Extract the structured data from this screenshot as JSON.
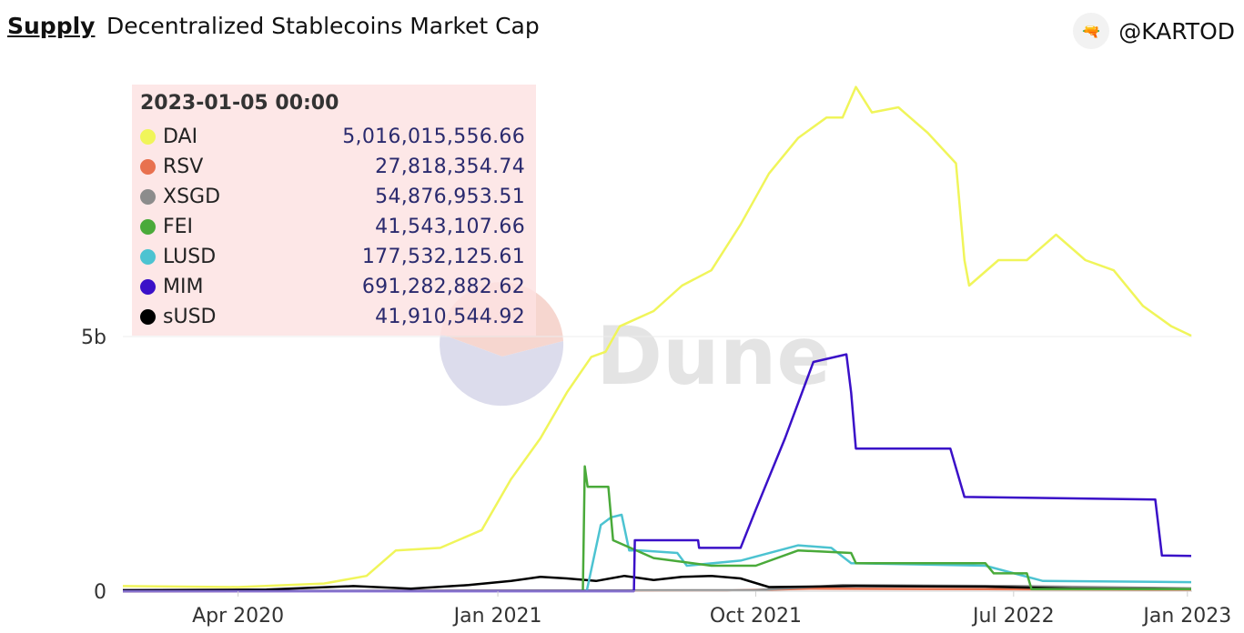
{
  "header": {
    "breadcrumb": "Supply",
    "title": "Decentralized Stablecoins Market Cap",
    "author": "@KARTOD"
  },
  "watermark": "Dune",
  "tooltip": {
    "date": "2023-01-05 00:00",
    "rows": [
      {
        "name": "DAI",
        "value": "5,016,015,556.66",
        "color": "#f0f55a"
      },
      {
        "name": "RSV",
        "value": "27,818,354.74",
        "color": "#e8714f"
      },
      {
        "name": "XSGD",
        "value": "54,876,953.51",
        "color": "#8c8c8c"
      },
      {
        "name": "FEI",
        "value": "41,543,107.66",
        "color": "#4aaa3a"
      },
      {
        "name": "LUSD",
        "value": "177,532,125.61",
        "color": "#4cc3d1"
      },
      {
        "name": "MIM",
        "value": "691,282,882.62",
        "color": "#3a10c8"
      },
      {
        "name": "sUSD",
        "value": "41,910,544.92",
        "color": "#000000"
      }
    ]
  },
  "chart_data": {
    "type": "line",
    "title": "Decentralized Stablecoins Market Cap",
    "x_unit": "date",
    "xlim": [
      "2019-12-01",
      "2023-01-06"
    ],
    "ylim": [
      0,
      10000000000
    ],
    "x_ticks": [
      {
        "date": "2020-04-01",
        "label": "Apr 2020"
      },
      {
        "date": "2021-01-01",
        "label": "Jan 2021"
      },
      {
        "date": "2021-10-01",
        "label": "Oct 2021"
      },
      {
        "date": "2022-07-01",
        "label": "Jul 2022"
      },
      {
        "date": "2023-01-01",
        "label": "Jan 2023"
      }
    ],
    "y_ticks": [
      {
        "value": 0,
        "label": "0"
      },
      {
        "value": 5000000000,
        "label": "5b"
      }
    ],
    "grid": "horizontal",
    "series": [
      {
        "name": "DAI",
        "color": "#f0f55a",
        "points": [
          [
            "2019-12-01",
            100000000.0
          ],
          [
            "2020-04-01",
            80000000.0
          ],
          [
            "2020-07-01",
            150000000.0
          ],
          [
            "2020-08-15",
            300000000.0
          ],
          [
            "2020-09-15",
            800000000.0
          ],
          [
            "2020-11-01",
            850000000.0
          ],
          [
            "2020-12-15",
            1200000000.0
          ],
          [
            "2021-01-15",
            2200000000.0
          ],
          [
            "2021-02-15",
            3000000000.0
          ],
          [
            "2021-03-15",
            3900000000.0
          ],
          [
            "2021-04-10",
            4600000000.0
          ],
          [
            "2021-04-25",
            4700000000.0
          ],
          [
            "2021-05-10",
            5200000000.0
          ],
          [
            "2021-06-15",
            5500000000.0
          ],
          [
            "2021-07-15",
            6000000000.0
          ],
          [
            "2021-08-15",
            6300000000.0
          ],
          [
            "2021-09-15",
            7200000000.0
          ],
          [
            "2021-10-15",
            8200000000.0
          ],
          [
            "2021-11-15",
            8900000000.0
          ],
          [
            "2021-12-15",
            9300000000.0
          ],
          [
            "2022-01-01",
            9300000000.0
          ],
          [
            "2022-01-15",
            9900000000.0
          ],
          [
            "2022-02-01",
            9400000000.0
          ],
          [
            "2022-03-01",
            9500000000.0
          ],
          [
            "2022-04-01",
            9000000000.0
          ],
          [
            "2022-05-01",
            8400000000.0
          ],
          [
            "2022-05-10",
            6500000000.0
          ],
          [
            "2022-05-15",
            6000000000.0
          ],
          [
            "2022-06-15",
            6500000000.0
          ],
          [
            "2022-07-15",
            6500000000.0
          ],
          [
            "2022-08-15",
            7000000000.0
          ],
          [
            "2022-09-15",
            6500000000.0
          ],
          [
            "2022-10-15",
            6300000000.0
          ],
          [
            "2022-11-15",
            5600000000.0
          ],
          [
            "2022-12-15",
            5200000000.0
          ],
          [
            "2023-01-05",
            5016000000.0
          ]
        ]
      },
      {
        "name": "RSV",
        "color": "#e8714f",
        "points": [
          [
            "2019-12-01",
            0
          ],
          [
            "2021-09-01",
            10000000.0
          ],
          [
            "2021-12-01",
            50000000.0
          ],
          [
            "2022-06-01",
            40000000.0
          ],
          [
            "2023-01-05",
            28000000.0
          ]
        ]
      },
      {
        "name": "XSGD",
        "color": "#8c8c8c",
        "points": [
          [
            "2019-12-01",
            0
          ],
          [
            "2021-10-01",
            20000000.0
          ],
          [
            "2022-01-01",
            120000000.0
          ],
          [
            "2022-07-01",
            100000000.0
          ],
          [
            "2023-01-05",
            55000000.0
          ]
        ]
      },
      {
        "name": "FEI",
        "color": "#4aaa3a",
        "points": [
          [
            "2021-04-01",
            0
          ],
          [
            "2021-04-03",
            2450000000.0
          ],
          [
            "2021-04-06",
            2050000000.0
          ],
          [
            "2021-04-28",
            2050000000.0
          ],
          [
            "2021-05-03",
            1000000000.0
          ],
          [
            "2021-06-15",
            650000000.0
          ],
          [
            "2021-08-15",
            500000000.0
          ],
          [
            "2021-10-01",
            500000000.0
          ],
          [
            "2021-11-15",
            800000000.0
          ],
          [
            "2022-01-10",
            750000000.0
          ],
          [
            "2022-01-15",
            550000000.0
          ],
          [
            "2022-06-01",
            550000000.0
          ],
          [
            "2022-06-10",
            350000000.0
          ],
          [
            "2022-07-15",
            350000000.0
          ],
          [
            "2022-07-20",
            40000000.0
          ],
          [
            "2023-01-05",
            41500000.0
          ]
        ]
      },
      {
        "name": "LUSD",
        "color": "#4cc3d1",
        "points": [
          [
            "2021-04-05",
            0
          ],
          [
            "2021-04-20",
            1300000000.0
          ],
          [
            "2021-05-01",
            1450000000.0
          ],
          [
            "2021-05-12",
            1500000000.0
          ],
          [
            "2021-05-20",
            800000000.0
          ],
          [
            "2021-06-01",
            800000000.0
          ],
          [
            "2021-07-10",
            750000000.0
          ],
          [
            "2021-07-20",
            500000000.0
          ],
          [
            "2021-09-15",
            600000000.0
          ],
          [
            "2021-11-15",
            900000000.0
          ],
          [
            "2021-12-20",
            850000000.0
          ],
          [
            "2022-01-10",
            550000000.0
          ],
          [
            "2022-06-01",
            500000000.0
          ],
          [
            "2022-08-01",
            200000000.0
          ],
          [
            "2023-01-05",
            177500000.0
          ]
        ]
      },
      {
        "name": "MIM",
        "color": "#3a10c8",
        "points": [
          [
            "2019-12-01",
            0
          ],
          [
            "2021-05-25",
            0
          ],
          [
            "2021-05-26",
            1000000000.0
          ],
          [
            "2021-08-01",
            1000000000.0
          ],
          [
            "2021-08-02",
            850000000.0
          ],
          [
            "2021-09-15",
            850000000.0
          ],
          [
            "2021-10-01",
            1600000000.0
          ],
          [
            "2021-11-01",
            3000000000.0
          ],
          [
            "2021-12-01",
            4500000000.0
          ],
          [
            "2022-01-05",
            4650000000.0
          ],
          [
            "2022-01-10",
            3900000000.0
          ],
          [
            "2022-01-15",
            2800000000.0
          ],
          [
            "2022-04-25",
            2800000000.0
          ],
          [
            "2022-05-10",
            1850000000.0
          ],
          [
            "2022-11-28",
            1800000000.0
          ],
          [
            "2022-12-05",
            700000000.0
          ],
          [
            "2023-01-05",
            691000000.0
          ]
        ]
      },
      {
        "name": "sUSD",
        "color": "#000000",
        "points": [
          [
            "2019-12-01",
            20000000.0
          ],
          [
            "2020-05-01",
            30000000.0
          ],
          [
            "2020-08-01",
            100000000.0
          ],
          [
            "2020-10-01",
            50000000.0
          ],
          [
            "2020-12-01",
            120000000.0
          ],
          [
            "2021-01-15",
            200000000.0
          ],
          [
            "2021-02-15",
            280000000.0
          ],
          [
            "2021-03-15",
            250000000.0
          ],
          [
            "2021-04-15",
            200000000.0
          ],
          [
            "2021-05-15",
            300000000.0
          ],
          [
            "2021-06-15",
            220000000.0
          ],
          [
            "2021-07-15",
            280000000.0
          ],
          [
            "2021-08-15",
            300000000.0
          ],
          [
            "2021-09-15",
            250000000.0
          ],
          [
            "2021-10-15",
            80000000.0
          ],
          [
            "2022-01-15",
            100000000.0
          ],
          [
            "2022-06-01",
            90000000.0
          ],
          [
            "2022-09-01",
            50000000.0
          ],
          [
            "2023-01-05",
            41900000.0
          ]
        ]
      }
    ]
  }
}
